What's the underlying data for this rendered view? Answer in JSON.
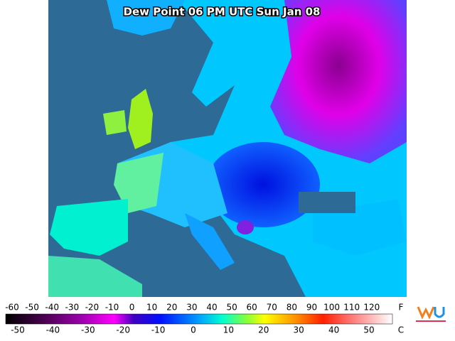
{
  "map": {
    "title": "Dew Point 06 PM UTC Sun Jan 08"
  },
  "legend": {
    "fahrenheit_labels": [
      -60,
      -50,
      -40,
      -30,
      -20,
      -10,
      0,
      10,
      20,
      30,
      40,
      50,
      60,
      70,
      80,
      90,
      100,
      110,
      120
    ],
    "fahrenheit_unit": "F",
    "celsius_labels": [
      -50,
      -40,
      -30,
      -20,
      -10,
      0,
      10,
      20,
      30,
      40,
      50
    ],
    "celsius_unit": "C"
  }
}
